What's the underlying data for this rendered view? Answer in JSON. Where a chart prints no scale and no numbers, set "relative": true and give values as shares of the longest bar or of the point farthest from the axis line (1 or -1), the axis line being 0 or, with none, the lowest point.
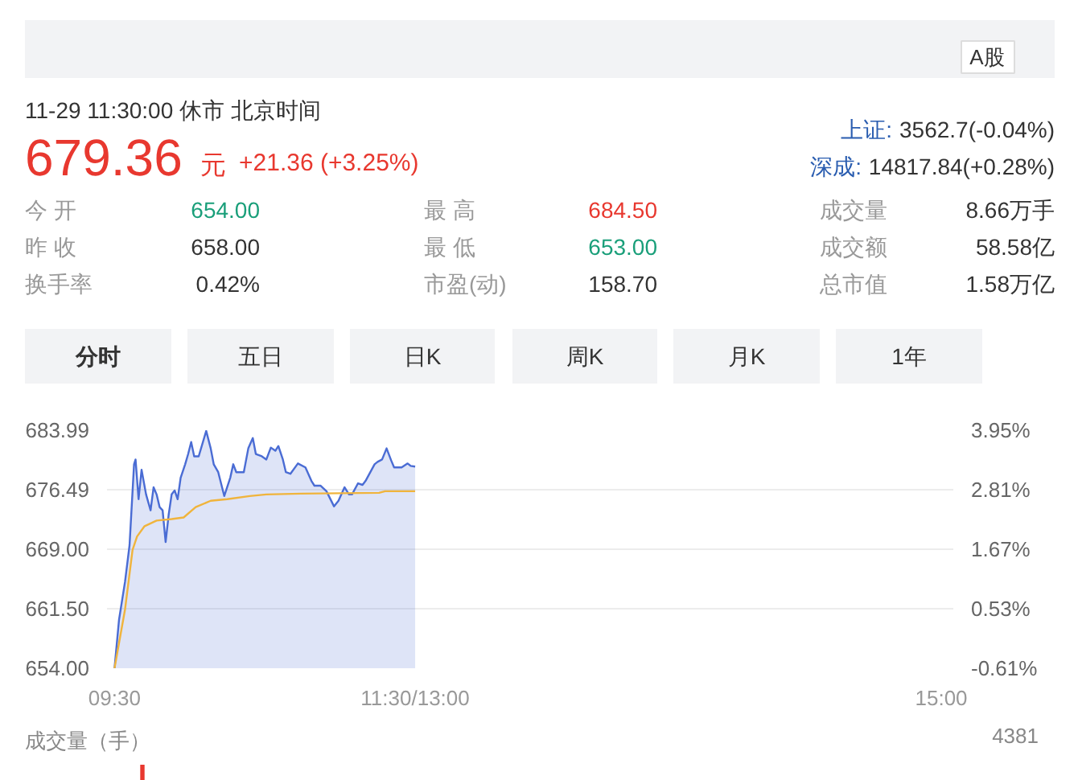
{
  "chart_data": [
    {
      "type": "other",
      "annotations": [
        "A股",
        "11-29 11:30:00  休市  北京时间",
        "679.36",
        "元",
        "+21.36 (+3.25%)",
        "上证:",
        "3562.7(-0.04%)",
        "深成:",
        "14817.84(+0.28%)",
        "今 开",
        "654.00",
        "最 高",
        "684.50",
        "成交量",
        "8.66万手",
        "昨 收",
        "658.00",
        "最 低",
        "653.00",
        "成交额",
        "58.58亿",
        "换手率",
        "0.42%",
        "市盈(动)",
        "158.70",
        "总市值",
        "1.58万亿",
        "分时",
        "五日",
        "日K",
        "周K",
        "月K",
        "1年"
      ]
    },
    {
      "type": "line",
      "series": [
        {
          "type": "area",
          "color": "#4a6cd4",
          "x": [
            9.5,
            9.53,
            9.57,
            9.6,
            9.63,
            9.64,
            9.66,
            9.68,
            9.71,
            9.74,
            9.76,
            9.78,
            9.8,
            9.82,
            9.84,
            9.86,
            9.88,
            9.9,
            9.92,
            9.94,
            9.97,
            9.99,
            10.01,
            10.03,
            10.06,
            10.11,
            10.14,
            10.16,
            10.19,
            10.23,
            10.27,
            10.29,
            10.31,
            10.36,
            10.39,
            10.42,
            10.44,
            10.48,
            10.51,
            10.54,
            10.57,
            10.59,
            10.62,
            10.64,
            10.67,
            10.72,
            10.77,
            10.81,
            10.83,
            10.87,
            10.91,
            10.96,
            10.99,
            11.03,
            11.06,
            11.08,
            11.12,
            11.15,
            11.17,
            11.23,
            11.25,
            11.28,
            11.31,
            11.34,
            11.36,
            11.41,
            11.45,
            11.47,
            11.5
          ],
          "values": [
            654.0,
            660.1,
            664.9,
            669.5,
            679.7,
            680.3,
            675.3,
            679.0,
            675.9,
            673.9,
            676.8,
            675.9,
            674.3,
            673.9,
            669.9,
            673.3,
            675.9,
            676.4,
            675.3,
            678.0,
            679.7,
            681.0,
            682.5,
            680.7,
            680.7,
            683.9,
            681.7,
            679.7,
            678.7,
            675.7,
            678.0,
            679.7,
            678.7,
            678.7,
            681.7,
            683.0,
            681.0,
            680.7,
            680.3,
            681.8,
            681.4,
            682.0,
            680.3,
            678.7,
            678.5,
            679.8,
            679.3,
            677.6,
            677.0,
            677.0,
            676.3,
            674.4,
            675.1,
            676.8,
            675.9,
            675.9,
            677.3,
            677.1,
            677.6,
            679.7,
            680.0,
            680.3,
            681.7,
            680.2,
            679.3,
            679.3,
            679.8,
            679.5,
            679.4
          ]
        },
        {
          "type": "line",
          "color": "#f0b43c",
          "x": [
            9.5,
            9.57,
            9.62,
            9.65,
            9.7,
            9.78,
            9.88,
            9.96,
            10.04,
            10.14,
            10.25,
            10.4,
            10.51,
            10.74,
            11.26,
            11.3,
            11.5
          ],
          "values": [
            654.0,
            661.4,
            668.9,
            670.6,
            671.9,
            672.6,
            672.8,
            673.0,
            674.3,
            675.1,
            675.3,
            675.7,
            675.9,
            676.0,
            676.1,
            676.3,
            676.3
          ]
        }
      ],
      "xlim": [
        9.45,
        15.08
      ],
      "xticks": [
        {
          "value": 9.5,
          "label": "09:30"
        },
        {
          "value": 11.5,
          "label": "11:30/13:00"
        },
        {
          "value": 15,
          "label": "15:00"
        }
      ],
      "ylim": [
        654,
        683.99
      ],
      "yticks": [
        {
          "value": 683.99,
          "label": "683.99"
        },
        {
          "value": 676.49,
          "label": "676.49"
        },
        {
          "value": 669,
          "label": "669.00"
        },
        {
          "value": 661.5,
          "label": "661.50"
        },
        {
          "value": 654,
          "label": "654.00"
        }
      ],
      "y2lim": [
        -0.61,
        3.95
      ],
      "y2ticks": [
        {
          "value": 3.95,
          "label": "3.95%"
        },
        {
          "value": 2.81,
          "label": "2.81%"
        },
        {
          "value": 1.67,
          "label": "1.67%"
        },
        {
          "value": 0.53,
          "label": "0.53%"
        },
        {
          "value": -0.61,
          "label": "-0.61%"
        }
      ],
      "grid": "y"
    },
    {
      "type": "bar",
      "title": "成交量（手）",
      "annotations": [
        "4381"
      ],
      "categories": [
        null
      ],
      "values": [
        1
      ],
      "color": "#e8382f",
      "relative": true,
      "tick_labels": false
    }
  ]
}
